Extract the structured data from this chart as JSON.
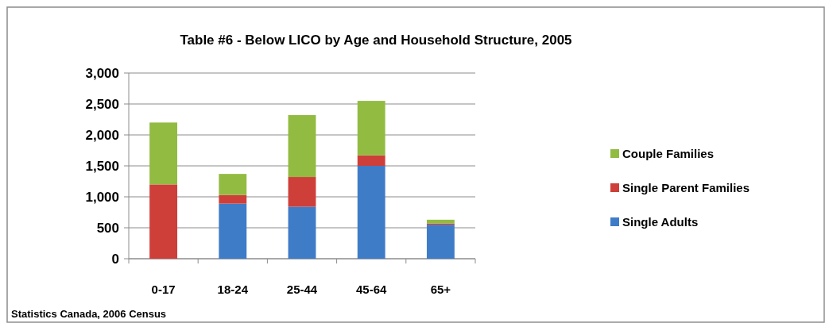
{
  "chart_data": {
    "type": "bar",
    "title": "Table #6 - Below LICO by Age and Household Structure, 2005",
    "categories": [
      "0-17",
      "18-24",
      "25-44",
      "45-64",
      "65+"
    ],
    "stacked": true,
    "series": [
      {
        "name": "Single Adults",
        "color": "#3f7cc8",
        "values": [
          0,
          890,
          840,
          1500,
          550
        ]
      },
      {
        "name": "Single Parent Families",
        "color": "#cf3f3a",
        "values": [
          1200,
          140,
          480,
          170,
          20
        ]
      },
      {
        "name": "Couple Families",
        "color": "#92bb42",
        "values": [
          1000,
          340,
          1000,
          880,
          60
        ]
      }
    ],
    "ylim": [
      0,
      3000
    ],
    "yticks": [
      {
        "value": 0,
        "label": "0"
      },
      {
        "value": 500,
        "label": "500"
      },
      {
        "value": 1000,
        "label": "1,000"
      },
      {
        "value": 1500,
        "label": "1,500"
      },
      {
        "value": 2000,
        "label": "2,000"
      },
      {
        "value": 2500,
        "label": "2,500"
      },
      {
        "value": 3000,
        "label": "3,000"
      }
    ],
    "grid": "y",
    "legend": "right",
    "annotations": [
      "Statistics Canada, 2006 Census"
    ]
  }
}
